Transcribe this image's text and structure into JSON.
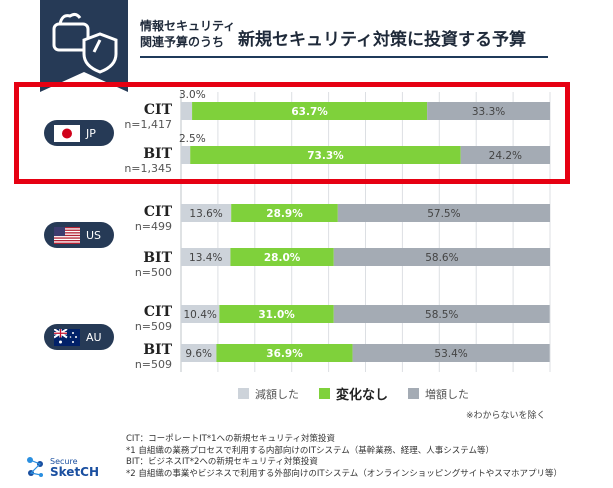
{
  "header": {
    "subtitle_line1": "情報セキュリティ",
    "subtitle_line2": "関連予算のうち",
    "title": "新規セキュリティ対策に投資する予算"
  },
  "countries": [
    {
      "code": "JP",
      "flag": "japan-flag-icon"
    },
    {
      "code": "US",
      "flag": "usa-flag-icon"
    },
    {
      "code": "AU",
      "flag": "australia-flag-icon"
    }
  ],
  "colors": {
    "decrease": "#cdd3da",
    "nochange": "#7fd13b",
    "increase": "#a4abb4",
    "highlight": "#e60012",
    "navy": "#263a56"
  },
  "chart_data": {
    "type": "bar",
    "orientation": "horizontal",
    "stacked": "100%",
    "series_names": [
      "減額した",
      "変化なし",
      "増額した"
    ],
    "rows": [
      {
        "group": "JP",
        "name": "CIT",
        "n": "n=1,417",
        "values": [
          3.0,
          63.7,
          33.3
        ],
        "labels": [
          "3.0%",
          "63.7%",
          "33.3%"
        ]
      },
      {
        "group": "JP",
        "name": "BIT",
        "n": "n=1,345",
        "values": [
          2.5,
          73.3,
          24.2
        ],
        "labels": [
          "2.5%",
          "73.3%",
          "24.2%"
        ]
      },
      {
        "group": "US",
        "name": "CIT",
        "n": "n=499",
        "values": [
          13.6,
          28.9,
          57.5
        ],
        "labels": [
          "13.6%",
          "28.9%",
          "57.5%"
        ]
      },
      {
        "group": "US",
        "name": "BIT",
        "n": "n=500",
        "values": [
          13.4,
          28.0,
          58.6
        ],
        "labels": [
          "13.4%",
          "28.0%",
          "58.6%"
        ]
      },
      {
        "group": "AU",
        "name": "CIT",
        "n": "n=509",
        "values": [
          10.4,
          31.0,
          58.5
        ],
        "labels": [
          "10.4%",
          "31.0%",
          "58.5%"
        ]
      },
      {
        "group": "AU",
        "name": "BIT",
        "n": "n=509",
        "values": [
          9.6,
          36.9,
          53.4
        ],
        "labels": [
          "9.6%",
          "36.9%",
          "53.4%"
        ]
      }
    ],
    "grid": true,
    "legend_position": "bottom"
  },
  "legend": {
    "decrease": "減額した",
    "nochange": "変化なし",
    "increase": "増額した"
  },
  "note": "※わからないを除く",
  "footnotes": [
    "CIT：コーポレートIT*1への新規セキュリティ対策投資",
    "*1 自組織の業務プロセスで利用する内部向けのITシステム（基幹業務、経理、人事システム等）",
    "BIT：ビジネスIT*2への新規セキュリティ対策投資",
    "*2 自組織の事業やビジネスで利用する外部向けのITシステム（オンラインショッピングサイトやスマホアプリ等）"
  ],
  "logo": {
    "line1": "Secure",
    "line2": "SketCH"
  }
}
